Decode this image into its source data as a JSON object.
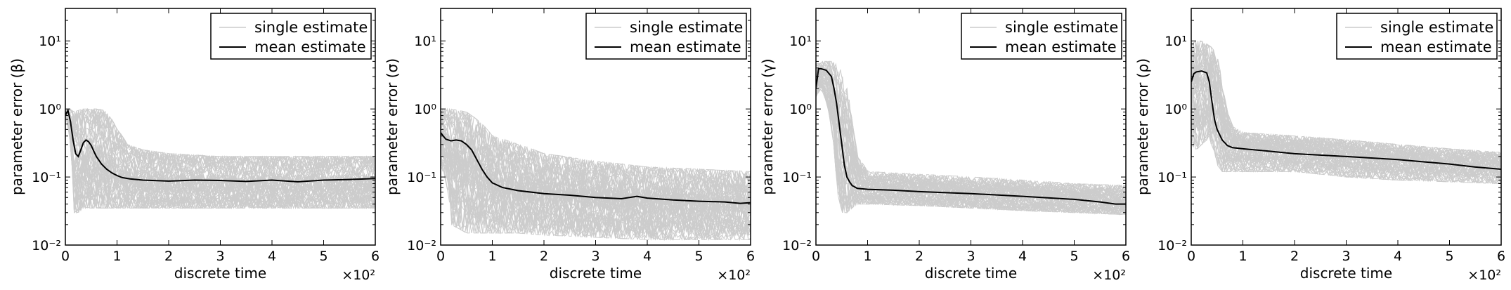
{
  "chart_data": [
    {
      "type": "line",
      "xlabel": "discrete time",
      "ylabel": "parameter error (β)",
      "x_multiplier_label": "×10²",
      "xlim": [
        0,
        6
      ],
      "ylim": [
        0.01,
        30
      ],
      "yscale": "log",
      "x_ticks": [
        "0",
        "1",
        "2",
        "3",
        "4",
        "5",
        "6"
      ],
      "y_ticks": [
        "10⁻²",
        "10⁻¹",
        "10⁰",
        "10¹"
      ],
      "legend": {
        "placement": "top-right",
        "entries": [
          "single estimate",
          "mean estimate"
        ]
      },
      "colors": {
        "single": "#cccccc",
        "mean": "#000000"
      },
      "series": [
        {
          "name": "mean estimate",
          "x": [
            0,
            0.05,
            0.1,
            0.15,
            0.2,
            0.25,
            0.3,
            0.35,
            0.4,
            0.45,
            0.5,
            0.55,
            0.6,
            0.7,
            0.8,
            0.9,
            1.0,
            1.1,
            1.25,
            1.5,
            2.0,
            2.5,
            3.0,
            3.5,
            4.0,
            4.5,
            5.0,
            5.5,
            6.0
          ],
          "y": [
            0.8,
            0.95,
            0.65,
            0.35,
            0.22,
            0.2,
            0.25,
            0.32,
            0.35,
            0.33,
            0.29,
            0.24,
            0.2,
            0.155,
            0.13,
            0.115,
            0.105,
            0.098,
            0.094,
            0.09,
            0.087,
            0.09,
            0.089,
            0.086,
            0.09,
            0.085,
            0.09,
            0.092,
            0.095
          ]
        },
        {
          "name": "single estimate",
          "band_x": [
            0,
            0.1,
            0.15,
            0.25,
            0.35,
            0.5,
            0.6,
            0.75,
            0.9,
            1.0,
            1.2,
            1.5,
            2.0,
            3.0,
            4.0,
            5.0,
            6.0
          ],
          "band_low": [
            0.8,
            0.3,
            0.03,
            0.03,
            0.035,
            0.035,
            0.035,
            0.035,
            0.035,
            0.035,
            0.035,
            0.035,
            0.035,
            0.035,
            0.035,
            0.035,
            0.035
          ],
          "band_high": [
            1.0,
            1.0,
            0.9,
            0.95,
            1.0,
            1.0,
            1.0,
            0.95,
            0.7,
            0.5,
            0.3,
            0.25,
            0.22,
            0.2,
            0.2,
            0.2,
            0.2
          ]
        }
      ]
    },
    {
      "type": "line",
      "xlabel": "discrete time",
      "ylabel": "parameter error (σ)",
      "x_multiplier_label": "×10²",
      "xlim": [
        0,
        6
      ],
      "ylim": [
        0.01,
        30
      ],
      "yscale": "log",
      "x_ticks": [
        "0",
        "1",
        "2",
        "3",
        "4",
        "5",
        "6"
      ],
      "y_ticks": [
        "10⁻²",
        "10⁻¹",
        "10⁰",
        "10¹"
      ],
      "legend": {
        "placement": "top-right",
        "entries": [
          "single estimate",
          "mean estimate"
        ]
      },
      "colors": {
        "single": "#cccccc",
        "mean": "#000000"
      },
      "series": [
        {
          "name": "mean estimate",
          "x": [
            0,
            0.05,
            0.1,
            0.2,
            0.3,
            0.4,
            0.5,
            0.6,
            0.7,
            0.8,
            0.9,
            1.0,
            1.2,
            1.5,
            2.0,
            2.5,
            3.0,
            3.5,
            3.8,
            4.0,
            4.5,
            5.0,
            5.5,
            5.8,
            6.0
          ],
          "y": [
            0.45,
            0.4,
            0.36,
            0.34,
            0.35,
            0.34,
            0.3,
            0.25,
            0.18,
            0.13,
            0.1,
            0.082,
            0.07,
            0.063,
            0.057,
            0.054,
            0.05,
            0.048,
            0.052,
            0.049,
            0.046,
            0.044,
            0.043,
            0.041,
            0.042
          ]
        },
        {
          "name": "single estimate",
          "band_x": [
            0,
            0.2,
            0.5,
            0.8,
            1.0,
            1.5,
            2.0,
            3.0,
            4.0,
            5.0,
            6.0
          ],
          "band_low": [
            0.15,
            0.02,
            0.015,
            0.015,
            0.015,
            0.015,
            0.014,
            0.013,
            0.012,
            0.012,
            0.012
          ],
          "band_high": [
            1.0,
            1.0,
            0.9,
            0.6,
            0.4,
            0.3,
            0.22,
            0.17,
            0.14,
            0.13,
            0.12
          ]
        }
      ]
    },
    {
      "type": "line",
      "xlabel": "discrete time",
      "ylabel": "parameter error (γ)",
      "x_multiplier_label": "×10²",
      "xlim": [
        0,
        6
      ],
      "ylim": [
        0.01,
        30
      ],
      "yscale": "log",
      "x_ticks": [
        "0",
        "1",
        "2",
        "3",
        "4",
        "5",
        "6"
      ],
      "y_ticks": [
        "10⁻²",
        "10⁻¹",
        "10⁰",
        "10¹"
      ],
      "legend": {
        "placement": "top-right",
        "entries": [
          "single estimate",
          "mean estimate"
        ]
      },
      "colors": {
        "single": "#cccccc",
        "mean": "#000000"
      },
      "series": [
        {
          "name": "mean estimate",
          "x": [
            0,
            0.05,
            0.1,
            0.2,
            0.3,
            0.35,
            0.4,
            0.45,
            0.5,
            0.55,
            0.6,
            0.65,
            0.7,
            0.8,
            1.0,
            1.5,
            2.0,
            3.0,
            4.0,
            5.0,
            5.5,
            5.8,
            6.0
          ],
          "y": [
            2.0,
            3.9,
            3.9,
            3.7,
            3.0,
            2.0,
            1.2,
            0.6,
            0.3,
            0.15,
            0.1,
            0.085,
            0.075,
            0.068,
            0.066,
            0.064,
            0.061,
            0.057,
            0.052,
            0.047,
            0.043,
            0.04,
            0.04
          ]
        },
        {
          "name": "single estimate",
          "band_x": [
            0,
            0.1,
            0.3,
            0.4,
            0.5,
            0.6,
            0.7,
            0.8,
            1.0,
            2.0,
            3.0,
            4.0,
            5.0,
            6.0
          ],
          "band_low": [
            1.5,
            2.0,
            0.5,
            0.06,
            0.03,
            0.03,
            0.035,
            0.04,
            0.04,
            0.038,
            0.035,
            0.032,
            0.03,
            0.028
          ],
          "band_high": [
            4.5,
            5.0,
            5.0,
            4.5,
            3.5,
            2.0,
            0.6,
            0.2,
            0.12,
            0.11,
            0.1,
            0.09,
            0.08,
            0.075
          ]
        }
      ]
    },
    {
      "type": "line",
      "xlabel": "discrete time",
      "ylabel": "parameter error (ρ)",
      "x_multiplier_label": "×10²",
      "xlim": [
        0,
        6
      ],
      "ylim": [
        0.01,
        30
      ],
      "yscale": "log",
      "x_ticks": [
        "0",
        "1",
        "2",
        "3",
        "4",
        "5",
        "6"
      ],
      "y_ticks": [
        "10⁻²",
        "10⁻¹",
        "10⁰",
        "10¹"
      ],
      "legend": {
        "placement": "top-right",
        "entries": [
          "single estimate",
          "mean estimate"
        ]
      },
      "colors": {
        "single": "#cccccc",
        "mean": "#000000"
      },
      "series": [
        {
          "name": "mean estimate",
          "x": [
            0,
            0.05,
            0.1,
            0.2,
            0.3,
            0.35,
            0.4,
            0.45,
            0.5,
            0.6,
            0.7,
            0.8,
            1.0,
            1.5,
            2.0,
            3.0,
            4.0,
            5.0,
            5.5,
            6.0
          ],
          "y": [
            2.5,
            3.3,
            3.5,
            3.6,
            3.4,
            2.5,
            1.3,
            0.7,
            0.5,
            0.35,
            0.29,
            0.27,
            0.26,
            0.24,
            0.22,
            0.2,
            0.18,
            0.155,
            0.14,
            0.13
          ]
        },
        {
          "name": "single estimate",
          "band_x": [
            0,
            0.1,
            0.2,
            0.3,
            0.4,
            0.5,
            0.6,
            0.7,
            0.8,
            1.0,
            2.0,
            3.0,
            4.0,
            5.0,
            6.0
          ],
          "band_low": [
            0.3,
            0.25,
            0.3,
            0.35,
            0.3,
            0.15,
            0.12,
            0.12,
            0.12,
            0.12,
            0.12,
            0.1,
            0.09,
            0.085,
            0.08
          ],
          "band_high": [
            9.0,
            10.0,
            10.0,
            9.0,
            8.0,
            6.0,
            2.0,
            0.9,
            0.55,
            0.45,
            0.4,
            0.35,
            0.3,
            0.26,
            0.23
          ]
        }
      ]
    }
  ]
}
